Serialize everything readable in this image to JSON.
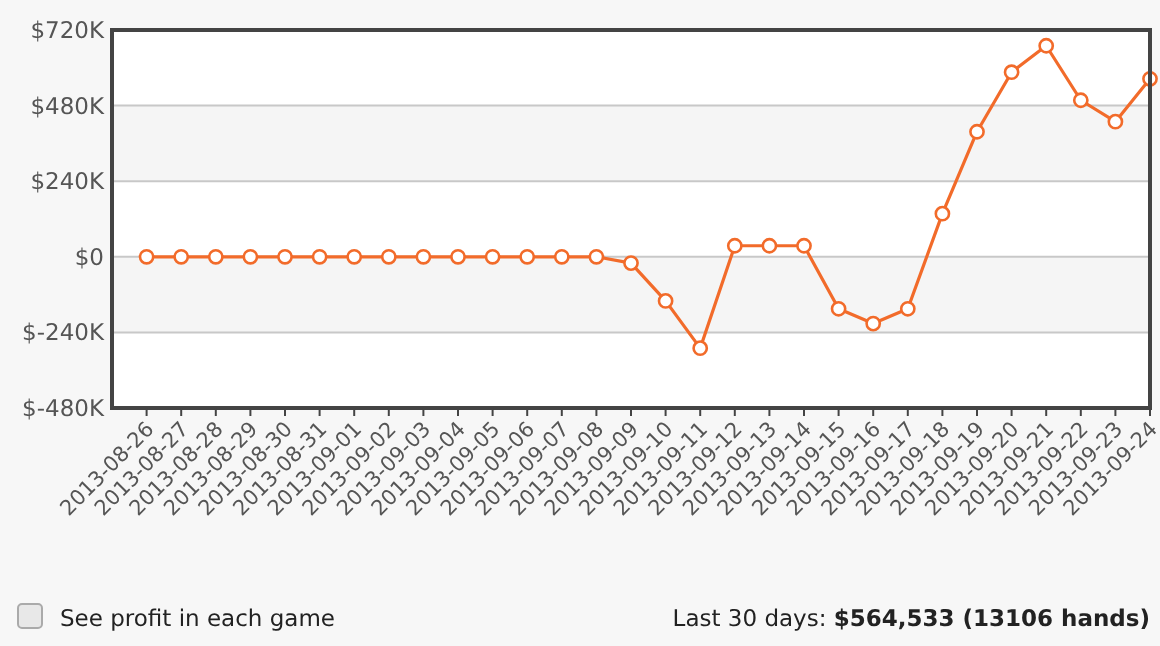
{
  "chart_data": {
    "type": "line",
    "categories": [
      "2013-08-26",
      "2013-08-27",
      "2013-08-28",
      "2013-08-29",
      "2013-08-30",
      "2013-08-31",
      "2013-09-01",
      "2013-09-02",
      "2013-09-03",
      "2013-09-04",
      "2013-09-05",
      "2013-09-06",
      "2013-09-07",
      "2013-09-08",
      "2013-09-09",
      "2013-09-10",
      "2013-09-11",
      "2013-09-12",
      "2013-09-13",
      "2013-09-14",
      "2013-09-15",
      "2013-09-16",
      "2013-09-17",
      "2013-09-18",
      "2013-09-19",
      "2013-09-20",
      "2013-09-21",
      "2013-09-22",
      "2013-09-23",
      "2013-09-24"
    ],
    "series": [
      {
        "color": "#f26b2a",
        "values": [
          0,
          0,
          0,
          0,
          0,
          0,
          0,
          0,
          0,
          0,
          0,
          0,
          0,
          0,
          -20000,
          -140000,
          -290000,
          35000,
          35000,
          35000,
          -165000,
          -212000,
          -165000,
          137000,
          397000,
          586000,
          670000,
          497000,
          429000,
          565000
        ]
      }
    ],
    "ylim": [
      -480000,
      720000
    ],
    "yticks": [
      {
        "value": -480000,
        "label": "$-480K"
      },
      {
        "value": -240000,
        "label": "$-240K"
      },
      {
        "value": 0,
        "label": "$0"
      },
      {
        "value": 240000,
        "label": "$240K"
      },
      {
        "value": 480000,
        "label": "$480K"
      },
      {
        "value": 720000,
        "label": "$720K"
      }
    ],
    "grid": "y",
    "marker": "circle",
    "line_style": "solid",
    "annotations": [
      "See profit in each game",
      "Last 30 days: $564,533 (13106 hands)"
    ]
  }
}
